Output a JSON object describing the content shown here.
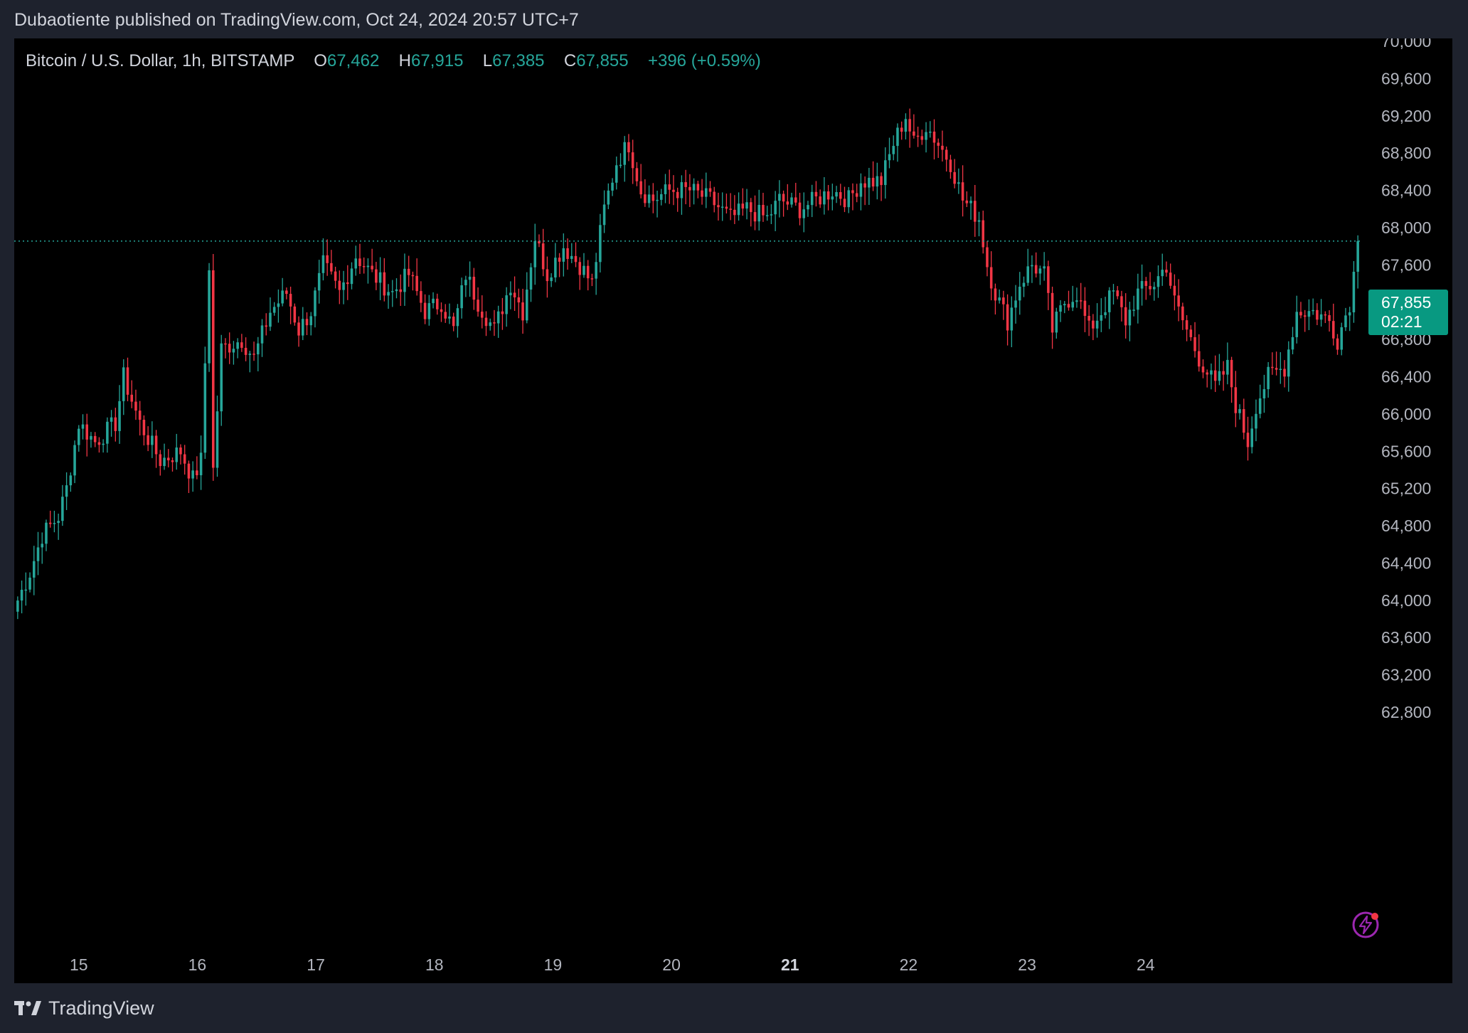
{
  "header": {
    "publisher_line": "Dubaotiente published on TradingView.com, Oct 24, 2024 20:57 UTC+7"
  },
  "legend": {
    "symbol": "Bitcoin / U.S. Dollar, 1h, BITSTAMP",
    "open_label": "O",
    "open": "67,462",
    "high_label": "H",
    "high": "67,915",
    "low_label": "L",
    "low": "67,385",
    "close_label": "C",
    "close": "67,855",
    "change": "+396 (+0.59%)"
  },
  "price_badge": {
    "price": "67,855",
    "countdown": "02:21"
  },
  "footer": {
    "brand": "TradingView"
  },
  "colors": {
    "up": "#26a69a",
    "down": "#f23645",
    "background": "#000000",
    "frame": "#1e222d",
    "axis_text": "#b2b5be",
    "badge": "#089981",
    "alert": "#9c27b0"
  },
  "icons": {
    "alert": "lightning-alert-icon",
    "logo": "tradingview-logo-icon"
  },
  "chart_data": {
    "type": "candlestick",
    "title": "Bitcoin / U.S. Dollar, 1h, BITSTAMP",
    "ylim": [
      62400,
      70000
    ],
    "y_ticks": [
      62800,
      63200,
      63600,
      64000,
      64400,
      64800,
      65200,
      65600,
      66000,
      66400,
      66800,
      67200,
      67600,
      68000,
      68400,
      68800,
      69200,
      69600,
      70000
    ],
    "y_tick_labels": [
      "62,800",
      "63,200",
      "63,600",
      "64,000",
      "64,400",
      "64,800",
      "65,200",
      "65,600",
      "66,000",
      "66,400",
      "66,800",
      "67,200",
      "67,600",
      "68,000",
      "68,400",
      "68,800",
      "69,200",
      "69,600",
      "70,000"
    ],
    "x_ticks": [
      "15",
      "16",
      "17",
      "18",
      "19",
      "20",
      "21",
      "22",
      "23",
      "24"
    ],
    "x_tick_bold": "21",
    "current_price": 67855,
    "grid": false,
    "anchors": [
      [
        0,
        64000
      ],
      [
        3,
        64300
      ],
      [
        6,
        64700
      ],
      [
        10,
        64900
      ],
      [
        12,
        65200
      ],
      [
        15,
        65900
      ],
      [
        19,
        65700
      ],
      [
        24,
        65900
      ],
      [
        26,
        66400
      ],
      [
        30,
        65900
      ],
      [
        35,
        65500
      ],
      [
        40,
        65600
      ],
      [
        43,
        65300
      ],
      [
        45,
        65500
      ],
      [
        47,
        67600
      ],
      [
        48,
        65400
      ],
      [
        50,
        66700
      ],
      [
        55,
        66800
      ],
      [
        58,
        66600
      ],
      [
        62,
        67100
      ],
      [
        66,
        67300
      ],
      [
        69,
        66900
      ],
      [
        72,
        67100
      ],
      [
        75,
        67600
      ],
      [
        79,
        67300
      ],
      [
        83,
        67700
      ],
      [
        87,
        67500
      ],
      [
        92,
        67300
      ],
      [
        96,
        67500
      ],
      [
        100,
        67100
      ],
      [
        104,
        67200
      ],
      [
        107,
        66900
      ],
      [
        110,
        67500
      ],
      [
        113,
        67200
      ],
      [
        117,
        66900
      ],
      [
        121,
        67400
      ],
      [
        124,
        67100
      ],
      [
        127,
        67900
      ],
      [
        130,
        67500
      ],
      [
        134,
        67800
      ],
      [
        138,
        67600
      ],
      [
        141,
        67400
      ],
      [
        144,
        68200
      ],
      [
        147,
        68700
      ],
      [
        150,
        68900
      ],
      [
        153,
        68400
      ],
      [
        156,
        68300
      ],
      [
        160,
        68400
      ],
      [
        165,
        68400
      ],
      [
        170,
        68300
      ],
      [
        175,
        68100
      ],
      [
        179,
        68200
      ],
      [
        184,
        68100
      ],
      [
        187,
        68300
      ],
      [
        192,
        68200
      ],
      [
        196,
        68300
      ],
      [
        200,
        68400
      ],
      [
        204,
        68300
      ],
      [
        207,
        68500
      ],
      [
        212,
        68500
      ],
      [
        215,
        68900
      ],
      [
        218,
        69200
      ],
      [
        220,
        68900
      ],
      [
        223,
        69100
      ],
      [
        226,
        68900
      ],
      [
        229,
        68700
      ],
      [
        232,
        68300
      ],
      [
        236,
        68100
      ],
      [
        238,
        67600
      ],
      [
        240,
        67300
      ],
      [
        243,
        67000
      ],
      [
        246,
        67400
      ],
      [
        249,
        67600
      ],
      [
        252,
        67500
      ],
      [
        254,
        66900
      ],
      [
        257,
        67200
      ],
      [
        260,
        67300
      ],
      [
        263,
        66900
      ],
      [
        266,
        67100
      ],
      [
        269,
        67300
      ],
      [
        272,
        67000
      ],
      [
        275,
        67300
      ],
      [
        279,
        67400
      ],
      [
        282,
        67600
      ],
      [
        284,
        67200
      ],
      [
        287,
        66900
      ],
      [
        290,
        66600
      ],
      [
        294,
        66300
      ],
      [
        297,
        66500
      ],
      [
        299,
        66100
      ],
      [
        302,
        65700
      ],
      [
        304,
        66100
      ],
      [
        307,
        66400
      ],
      [
        311,
        66500
      ],
      [
        314,
        67100
      ],
      [
        318,
        67100
      ],
      [
        322,
        67000
      ],
      [
        324,
        66800
      ],
      [
        327,
        67200
      ],
      [
        329,
        67800
      ]
    ],
    "n_candles": 330
  }
}
